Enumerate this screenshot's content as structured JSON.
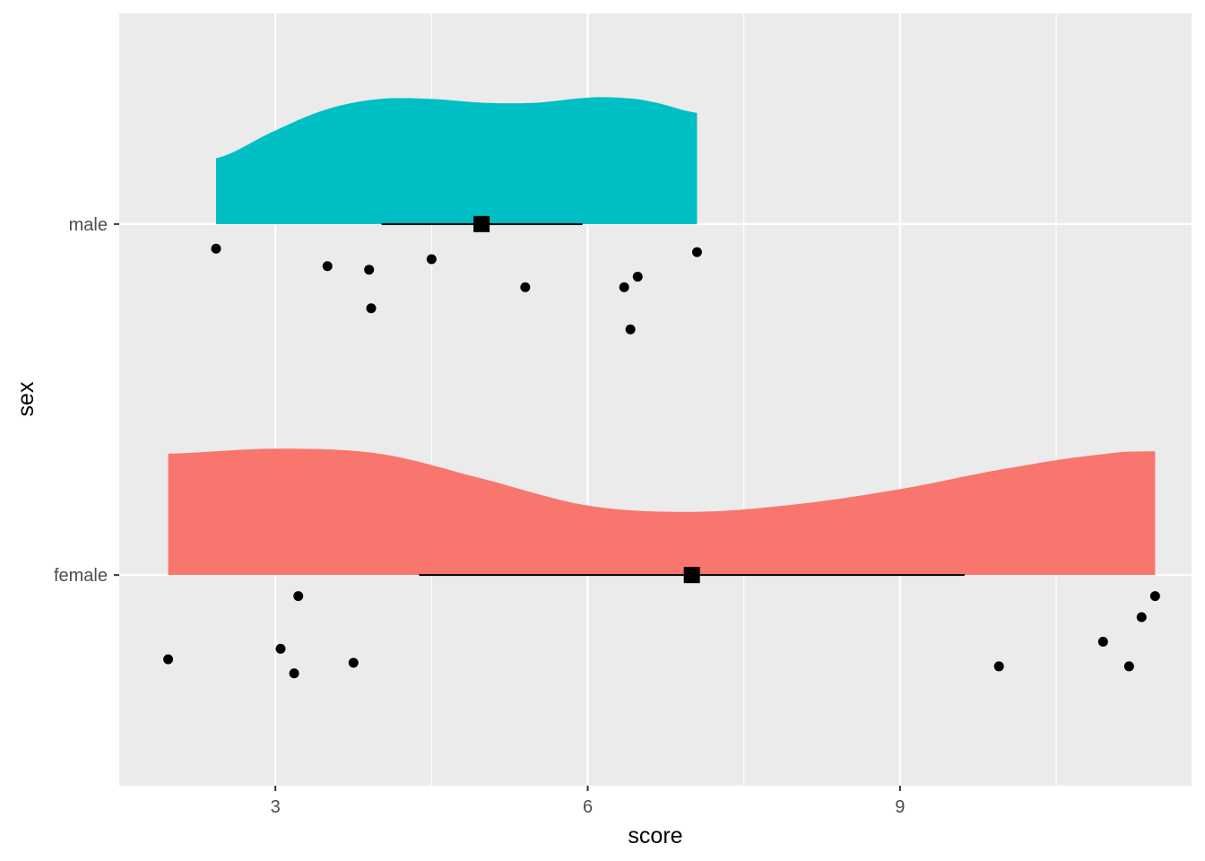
{
  "chart_data": {
    "type": "raincloud",
    "title": "",
    "xlabel": "score",
    "ylabel": "sex",
    "xlim": [
      1.5,
      11.8
    ],
    "x_ticks": [
      3,
      6,
      9
    ],
    "x_minor_ticks": [
      4.5,
      7.5,
      10.5
    ],
    "categories": [
      "female",
      "male"
    ],
    "grid": true,
    "legend": "none",
    "colors": {
      "female": "#F8766D",
      "male": "#00BFC4",
      "panel": "#EBEBEB",
      "grid": "#FFFFFF"
    },
    "series": [
      {
        "name": "male",
        "category": "male",
        "color": "#00BFC4",
        "density_range": [
          2.43,
          7.05
        ],
        "density": [
          [
            2.43,
            0.52
          ],
          [
            3.0,
            0.74
          ],
          [
            3.5,
            0.91
          ],
          [
            4.0,
            0.99
          ],
          [
            4.5,
            0.99
          ],
          [
            5.0,
            0.96
          ],
          [
            5.5,
            0.96
          ],
          [
            6.0,
            1.0
          ],
          [
            6.3,
            1.0
          ],
          [
            6.6,
            0.97
          ],
          [
            7.05,
            0.88
          ]
        ],
        "mean": 4.98,
        "interval": [
          4.02,
          5.95
        ],
        "points": [
          {
            "x": 2.43,
            "y": 1.93
          },
          {
            "x": 3.5,
            "y": 1.88
          },
          {
            "x": 3.9,
            "y": 1.87
          },
          {
            "x": 3.92,
            "y": 1.76
          },
          {
            "x": 4.5,
            "y": 1.9
          },
          {
            "x": 5.4,
            "y": 1.82
          },
          {
            "x": 6.35,
            "y": 1.82
          },
          {
            "x": 6.48,
            "y": 1.85
          },
          {
            "x": 6.41,
            "y": 1.7
          },
          {
            "x": 7.05,
            "y": 1.92
          }
        ]
      },
      {
        "name": "female",
        "category": "female",
        "color": "#F8766D",
        "density_range": [
          1.97,
          11.45
        ],
        "density": [
          [
            1.97,
            0.96
          ],
          [
            3.0,
            1.0
          ],
          [
            4.0,
            0.96
          ],
          [
            5.0,
            0.76
          ],
          [
            6.0,
            0.55
          ],
          [
            7.0,
            0.5
          ],
          [
            8.0,
            0.56
          ],
          [
            9.0,
            0.68
          ],
          [
            10.0,
            0.84
          ],
          [
            11.0,
            0.96
          ],
          [
            11.45,
            0.98
          ]
        ],
        "mean": 7.0,
        "interval": [
          4.38,
          9.62
        ],
        "points": [
          {
            "x": 3.22,
            "y": 0.94
          },
          {
            "x": 1.97,
            "y": 0.76
          },
          {
            "x": 3.05,
            "y": 0.79
          },
          {
            "x": 3.18,
            "y": 0.72
          },
          {
            "x": 3.75,
            "y": 0.75
          },
          {
            "x": 9.95,
            "y": 0.74
          },
          {
            "x": 10.95,
            "y": 0.81
          },
          {
            "x": 11.2,
            "y": 0.74
          },
          {
            "x": 11.32,
            "y": 0.88
          },
          {
            "x": 11.45,
            "y": 0.94
          }
        ]
      }
    ]
  }
}
